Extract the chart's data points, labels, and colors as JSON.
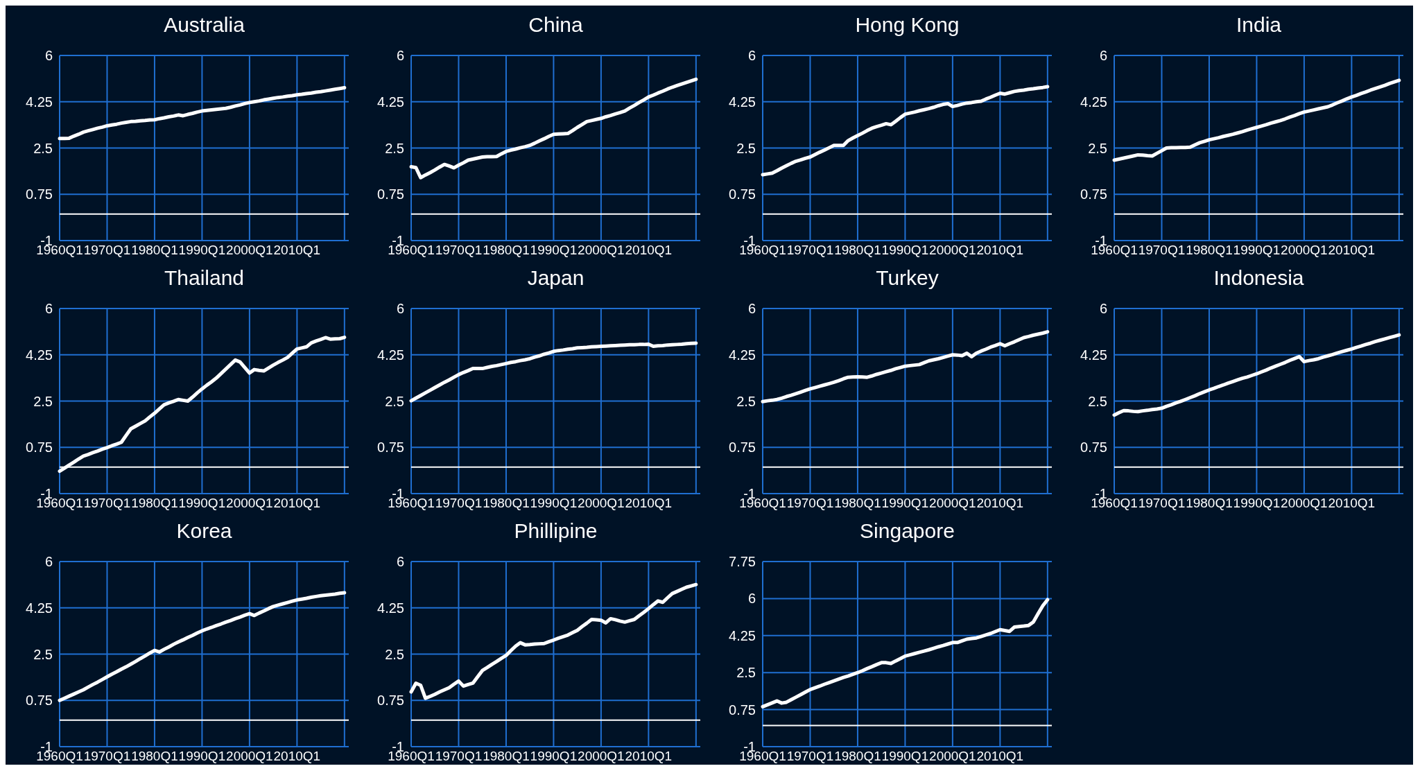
{
  "chart_data": [
    {
      "type": "line",
      "title": "Australia",
      "categories": [
        "1960Q1",
        null,
        null,
        null,
        null,
        null,
        null,
        null,
        null,
        null,
        "1970Q1",
        null,
        null,
        null,
        null,
        null,
        null,
        null,
        null,
        null,
        "1980Q1",
        null,
        null,
        null,
        null,
        null,
        null,
        null,
        null,
        null,
        "1990Q1",
        null,
        null,
        null,
        null,
        null,
        null,
        null,
        null,
        null,
        "2000Q1",
        null,
        null,
        null,
        null,
        null,
        null,
        null,
        null,
        null,
        "2010Q1",
        null,
        null,
        null,
        null,
        null,
        null,
        null,
        null,
        null,
        null
      ],
      "series": [
        {
          "color": "#ffffff",
          "values": [
            2.86,
            2.86,
            2.87,
            2.95,
            3.02,
            3.1,
            3.15,
            3.2,
            3.25,
            3.29,
            3.34,
            3.37,
            3.4,
            3.44,
            3.47,
            3.5,
            3.51,
            3.53,
            3.54,
            3.56,
            3.57,
            3.61,
            3.64,
            3.68,
            3.71,
            3.75,
            3.72,
            3.77,
            3.81,
            3.86,
            3.9,
            3.92,
            3.94,
            3.96,
            3.98,
            4.0,
            4.04,
            4.09,
            4.13,
            4.18,
            4.22,
            4.25,
            4.28,
            4.32,
            4.35,
            4.38,
            4.41,
            4.43,
            4.46,
            4.48,
            4.51,
            4.53,
            4.56,
            4.58,
            4.61,
            4.63,
            4.66,
            4.69,
            4.72,
            4.75,
            4.78
          ]
        }
      ],
      "ylim": [
        -1,
        6
      ],
      "yticks": [
        -1,
        0.75,
        2.5,
        4.25,
        6
      ],
      "grid": true,
      "ref_lines": [
        {
          "axis": "y",
          "value": 0,
          "color": "#ffffff"
        }
      ]
    },
    {
      "type": "line",
      "title": "China",
      "categories": [
        "1960Q1",
        null,
        null,
        null,
        null,
        null,
        null,
        null,
        null,
        null,
        "1970Q1",
        null,
        null,
        null,
        null,
        null,
        null,
        null,
        null,
        null,
        "1980Q1",
        null,
        null,
        null,
        null,
        null,
        null,
        null,
        null,
        null,
        "1990Q1",
        null,
        null,
        null,
        null,
        null,
        null,
        null,
        null,
        null,
        "2000Q1",
        null,
        null,
        null,
        null,
        null,
        null,
        null,
        null,
        null,
        "2010Q1",
        null,
        null,
        null,
        null,
        null,
        null,
        null,
        null,
        null,
        null
      ],
      "series": [
        {
          "color": "#ffffff",
          "values": [
            1.79,
            1.76,
            1.38,
            1.48,
            1.57,
            1.67,
            1.78,
            1.88,
            1.82,
            1.75,
            1.85,
            1.94,
            2.04,
            2.08,
            2.12,
            2.16,
            2.17,
            2.17,
            2.18,
            2.28,
            2.37,
            2.42,
            2.46,
            2.51,
            2.55,
            2.6,
            2.68,
            2.77,
            2.85,
            2.94,
            3.02,
            3.03,
            3.04,
            3.05,
            3.16,
            3.28,
            3.39,
            3.5,
            3.54,
            3.58,
            3.62,
            3.68,
            3.73,
            3.79,
            3.84,
            3.9,
            4.01,
            4.11,
            4.22,
            4.32,
            4.43,
            4.5,
            4.58,
            4.65,
            4.73,
            4.8,
            4.86,
            4.92,
            4.98,
            5.04,
            5.1
          ]
        }
      ],
      "ylim": [
        -1,
        6
      ],
      "yticks": [
        -1,
        0.75,
        2.5,
        4.25,
        6
      ],
      "grid": true,
      "ref_lines": [
        {
          "axis": "y",
          "value": 0,
          "color": "#ffffff"
        }
      ]
    },
    {
      "type": "line",
      "title": "Hong Kong",
      "categories": [
        "1960Q1",
        null,
        null,
        null,
        null,
        null,
        null,
        null,
        null,
        null,
        "1970Q1",
        null,
        null,
        null,
        null,
        null,
        null,
        null,
        null,
        null,
        "1980Q1",
        null,
        null,
        null,
        null,
        null,
        null,
        null,
        null,
        null,
        "1990Q1",
        null,
        null,
        null,
        null,
        null,
        null,
        null,
        null,
        null,
        "2000Q1",
        null,
        null,
        null,
        null,
        null,
        null,
        null,
        null,
        null,
        "2010Q1",
        null,
        null,
        null,
        null,
        null,
        null,
        null,
        null,
        null,
        null
      ],
      "series": [
        {
          "color": "#ffffff",
          "values": [
            1.49,
            1.52,
            1.55,
            1.64,
            1.74,
            1.83,
            1.92,
            2.0,
            2.05,
            2.11,
            2.16,
            2.25,
            2.34,
            2.42,
            2.51,
            2.6,
            2.6,
            2.6,
            2.78,
            2.88,
            2.97,
            3.06,
            3.16,
            3.25,
            3.31,
            3.36,
            3.42,
            3.38,
            3.51,
            3.65,
            3.78,
            3.82,
            3.86,
            3.91,
            3.95,
            3.99,
            4.04,
            4.1,
            4.15,
            4.18,
            4.07,
            4.11,
            4.16,
            4.2,
            4.22,
            4.25,
            4.27,
            4.35,
            4.42,
            4.5,
            4.57,
            4.54,
            4.59,
            4.64,
            4.67,
            4.69,
            4.72,
            4.74,
            4.77,
            4.79,
            4.82
          ]
        }
      ],
      "ylim": [
        -1,
        6
      ],
      "yticks": [
        -1,
        0.75,
        2.5,
        4.25,
        6
      ],
      "grid": true,
      "ref_lines": [
        {
          "axis": "y",
          "value": 0,
          "color": "#ffffff"
        }
      ]
    },
    {
      "type": "line",
      "title": "India",
      "categories": [
        "1960Q1",
        null,
        null,
        null,
        null,
        null,
        null,
        null,
        null,
        null,
        "1970Q1",
        null,
        null,
        null,
        null,
        null,
        null,
        null,
        null,
        null,
        "1980Q1",
        null,
        null,
        null,
        null,
        null,
        null,
        null,
        null,
        null,
        "1990Q1",
        null,
        null,
        null,
        null,
        null,
        null,
        null,
        null,
        null,
        "2000Q1",
        null,
        null,
        null,
        null,
        null,
        null,
        null,
        null,
        null,
        "2010Q1",
        null,
        null,
        null,
        null,
        null,
        null,
        null,
        null,
        null,
        null
      ],
      "series": [
        {
          "color": "#ffffff",
          "values": [
            2.04,
            2.08,
            2.12,
            2.16,
            2.2,
            2.24,
            2.23,
            2.21,
            2.2,
            2.3,
            2.4,
            2.5,
            2.51,
            2.51,
            2.52,
            2.52,
            2.53,
            2.62,
            2.7,
            2.75,
            2.81,
            2.85,
            2.89,
            2.94,
            2.98,
            3.02,
            3.07,
            3.12,
            3.18,
            3.23,
            3.28,
            3.33,
            3.38,
            3.44,
            3.49,
            3.54,
            3.6,
            3.67,
            3.73,
            3.8,
            3.86,
            3.9,
            3.94,
            3.98,
            4.02,
            4.06,
            4.13,
            4.21,
            4.28,
            4.36,
            4.43,
            4.49,
            4.56,
            4.62,
            4.69,
            4.75,
            4.81,
            4.87,
            4.94,
            5.0,
            5.06
          ]
        }
      ],
      "ylim": [
        -1,
        6
      ],
      "yticks": [
        -1,
        0.75,
        2.5,
        4.25,
        6
      ],
      "grid": true,
      "ref_lines": [
        {
          "axis": "y",
          "value": 0,
          "color": "#ffffff"
        }
      ]
    },
    {
      "type": "line",
      "title": "Thailand",
      "categories": [
        "1960Q1",
        null,
        null,
        null,
        null,
        null,
        null,
        null,
        null,
        null,
        "1970Q1",
        null,
        null,
        null,
        null,
        null,
        null,
        null,
        null,
        null,
        "1980Q1",
        null,
        null,
        null,
        null,
        null,
        null,
        null,
        null,
        null,
        "1990Q1",
        null,
        null,
        null,
        null,
        null,
        null,
        null,
        null,
        null,
        "2000Q1",
        null,
        null,
        null,
        null,
        null,
        null,
        null,
        null,
        null,
        "2010Q1",
        null,
        null,
        null,
        null,
        null,
        null,
        null,
        null,
        null,
        null
      ],
      "series": [
        {
          "color": "#ffffff",
          "values": [
            -0.15,
            -0.04,
            0.08,
            0.19,
            0.31,
            0.42,
            0.48,
            0.55,
            0.61,
            0.68,
            0.74,
            0.81,
            0.87,
            0.94,
            1.2,
            1.45,
            1.55,
            1.65,
            1.75,
            1.9,
            2.04,
            2.2,
            2.36,
            2.43,
            2.49,
            2.56,
            2.53,
            2.5,
            2.65,
            2.81,
            2.96,
            3.1,
            3.23,
            3.37,
            3.54,
            3.71,
            3.88,
            4.05,
            3.98,
            3.77,
            3.56,
            3.69,
            3.66,
            3.64,
            3.75,
            3.86,
            3.96,
            4.05,
            4.15,
            4.31,
            4.47,
            4.51,
            4.55,
            4.7,
            4.77,
            4.83,
            4.9,
            4.84,
            4.85,
            4.86,
            4.91
          ]
        }
      ],
      "ylim": [
        -1,
        6
      ],
      "yticks": [
        -1,
        0.75,
        2.5,
        4.25,
        6
      ],
      "grid": true,
      "ref_lines": [
        {
          "axis": "y",
          "value": 0,
          "color": "#ffffff"
        }
      ]
    },
    {
      "type": "line",
      "title": "Japan",
      "categories": [
        "1960Q1",
        null,
        null,
        null,
        null,
        null,
        null,
        null,
        null,
        null,
        "1970Q1",
        null,
        null,
        null,
        null,
        null,
        null,
        null,
        null,
        null,
        "1980Q1",
        null,
        null,
        null,
        null,
        null,
        null,
        null,
        null,
        null,
        "1990Q1",
        null,
        null,
        null,
        null,
        null,
        null,
        null,
        null,
        null,
        "2000Q1",
        null,
        null,
        null,
        null,
        null,
        null,
        null,
        null,
        null,
        "2010Q1",
        null,
        null,
        null,
        null,
        null,
        null,
        null,
        null,
        null,
        null
      ],
      "series": [
        {
          "color": "#ffffff",
          "values": [
            2.51,
            2.61,
            2.71,
            2.81,
            2.91,
            3.01,
            3.11,
            3.21,
            3.3,
            3.4,
            3.5,
            3.58,
            3.65,
            3.73,
            3.73,
            3.73,
            3.77,
            3.81,
            3.84,
            3.88,
            3.92,
            3.96,
            3.99,
            4.03,
            4.06,
            4.1,
            4.16,
            4.21,
            4.27,
            4.32,
            4.38,
            4.41,
            4.43,
            4.46,
            4.48,
            4.51,
            4.52,
            4.53,
            4.55,
            4.56,
            4.57,
            4.58,
            4.59,
            4.6,
            4.61,
            4.62,
            4.63,
            4.63,
            4.64,
            4.64,
            4.65,
            4.57,
            4.59,
            4.6,
            4.62,
            4.63,
            4.64,
            4.65,
            4.67,
            4.68,
            4.69
          ]
        }
      ],
      "ylim": [
        -1,
        6
      ],
      "yticks": [
        -1,
        0.75,
        2.5,
        4.25,
        6
      ],
      "grid": true,
      "ref_lines": [
        {
          "axis": "y",
          "value": 0,
          "color": "#ffffff"
        }
      ]
    },
    {
      "type": "line",
      "title": "Turkey",
      "categories": [
        "1960Q1",
        null,
        null,
        null,
        null,
        null,
        null,
        null,
        null,
        null,
        "1970Q1",
        null,
        null,
        null,
        null,
        null,
        null,
        null,
        null,
        null,
        "1980Q1",
        null,
        null,
        null,
        null,
        null,
        null,
        null,
        null,
        null,
        "1990Q1",
        null,
        null,
        null,
        null,
        null,
        null,
        null,
        null,
        null,
        "2000Q1",
        null,
        null,
        null,
        null,
        null,
        null,
        null,
        null,
        null,
        "2010Q1",
        null,
        null,
        null,
        null,
        null,
        null,
        null,
        null,
        null,
        null
      ],
      "series": [
        {
          "color": "#ffffff",
          "values": [
            2.48,
            2.51,
            2.53,
            2.56,
            2.61,
            2.67,
            2.72,
            2.78,
            2.84,
            2.9,
            2.96,
            3.01,
            3.06,
            3.11,
            3.16,
            3.21,
            3.27,
            3.34,
            3.4,
            3.41,
            3.42,
            3.41,
            3.4,
            3.45,
            3.51,
            3.56,
            3.61,
            3.66,
            3.72,
            3.77,
            3.82,
            3.84,
            3.86,
            3.88,
            3.95,
            4.02,
            4.06,
            4.1,
            4.15,
            4.2,
            4.25,
            4.24,
            4.22,
            4.31,
            4.18,
            4.31,
            4.39,
            4.46,
            4.54,
            4.6,
            4.67,
            4.59,
            4.67,
            4.74,
            4.82,
            4.9,
            4.94,
            4.99,
            5.03,
            5.07,
            5.12
          ]
        }
      ],
      "ylim": [
        -1,
        6
      ],
      "yticks": [
        -1,
        0.75,
        2.5,
        4.25,
        6
      ],
      "grid": true,
      "ref_lines": [
        {
          "axis": "y",
          "value": 0,
          "color": "#ffffff"
        }
      ]
    },
    {
      "type": "line",
      "title": "Indonesia",
      "categories": [
        "1960Q1",
        null,
        null,
        null,
        null,
        null,
        null,
        null,
        null,
        null,
        "1970Q1",
        null,
        null,
        null,
        null,
        null,
        null,
        null,
        null,
        null,
        "1980Q1",
        null,
        null,
        null,
        null,
        null,
        null,
        null,
        null,
        null,
        "1990Q1",
        null,
        null,
        null,
        null,
        null,
        null,
        null,
        null,
        null,
        "2000Q1",
        null,
        null,
        null,
        null,
        null,
        null,
        null,
        null,
        null,
        "2010Q1",
        null,
        null,
        null,
        null,
        null,
        null,
        null,
        null,
        null,
        null
      ],
      "series": [
        {
          "color": "#ffffff",
          "values": [
            1.97,
            2.06,
            2.14,
            2.13,
            2.11,
            2.1,
            2.13,
            2.15,
            2.18,
            2.2,
            2.23,
            2.3,
            2.36,
            2.43,
            2.49,
            2.56,
            2.63,
            2.7,
            2.78,
            2.85,
            2.92,
            2.98,
            3.05,
            3.11,
            3.18,
            3.24,
            3.3,
            3.36,
            3.41,
            3.47,
            3.53,
            3.6,
            3.67,
            3.75,
            3.82,
            3.89,
            3.96,
            4.04,
            4.11,
            4.18,
            3.99,
            4.03,
            4.06,
            4.1,
            4.16,
            4.21,
            4.26,
            4.32,
            4.37,
            4.42,
            4.47,
            4.53,
            4.58,
            4.64,
            4.69,
            4.75,
            4.8,
            4.85,
            4.9,
            4.95,
            5.0
          ]
        }
      ],
      "ylim": [
        -1,
        6
      ],
      "yticks": [
        -1,
        0.75,
        2.5,
        4.25,
        6
      ],
      "grid": true,
      "ref_lines": [
        {
          "axis": "y",
          "value": 0,
          "color": "#ffffff"
        }
      ]
    },
    {
      "type": "line",
      "title": "Korea",
      "categories": [
        "1960Q1",
        null,
        null,
        null,
        null,
        null,
        null,
        null,
        null,
        null,
        "1970Q1",
        null,
        null,
        null,
        null,
        null,
        null,
        null,
        null,
        null,
        "1980Q1",
        null,
        null,
        null,
        null,
        null,
        null,
        null,
        null,
        null,
        "1990Q1",
        null,
        null,
        null,
        null,
        null,
        null,
        null,
        null,
        null,
        "2000Q1",
        null,
        null,
        null,
        null,
        null,
        null,
        null,
        null,
        null,
        "2010Q1",
        null,
        null,
        null,
        null,
        null,
        null,
        null,
        null,
        null,
        null
      ],
      "series": [
        {
          "color": "#ffffff",
          "values": [
            0.75,
            0.83,
            0.91,
            0.99,
            1.07,
            1.15,
            1.25,
            1.35,
            1.44,
            1.54,
            1.64,
            1.74,
            1.83,
            1.93,
            2.02,
            2.12,
            2.22,
            2.33,
            2.43,
            2.54,
            2.64,
            2.58,
            2.68,
            2.77,
            2.87,
            2.96,
            3.04,
            3.13,
            3.21,
            3.3,
            3.38,
            3.45,
            3.51,
            3.58,
            3.64,
            3.71,
            3.77,
            3.84,
            3.9,
            3.97,
            4.03,
            3.96,
            4.05,
            4.13,
            4.22,
            4.3,
            4.35,
            4.4,
            4.45,
            4.5,
            4.55,
            4.58,
            4.61,
            4.65,
            4.68,
            4.71,
            4.73,
            4.75,
            4.77,
            4.8,
            4.82
          ]
        }
      ],
      "ylim": [
        -1,
        6
      ],
      "yticks": [
        -1,
        0.75,
        2.5,
        4.25,
        6
      ],
      "grid": true,
      "ref_lines": [
        {
          "axis": "y",
          "value": 0,
          "color": "#ffffff"
        }
      ]
    },
    {
      "type": "line",
      "title": "Phillipine",
      "categories": [
        "1960Q1",
        null,
        null,
        null,
        null,
        null,
        null,
        null,
        null,
        null,
        "1970Q1",
        null,
        null,
        null,
        null,
        null,
        null,
        null,
        null,
        null,
        "1980Q1",
        null,
        null,
        null,
        null,
        null,
        null,
        null,
        null,
        null,
        "1990Q1",
        null,
        null,
        null,
        null,
        null,
        null,
        null,
        null,
        null,
        "2000Q1",
        null,
        null,
        null,
        null,
        null,
        null,
        null,
        null,
        null,
        "2010Q1",
        null,
        null,
        null,
        null,
        null,
        null,
        null,
        null,
        null,
        null
      ],
      "series": [
        {
          "color": "#ffffff",
          "values": [
            1.07,
            1.4,
            1.32,
            0.83,
            0.9,
            0.98,
            1.07,
            1.15,
            1.23,
            1.36,
            1.48,
            1.29,
            1.35,
            1.4,
            1.64,
            1.88,
            1.99,
            2.11,
            2.22,
            2.34,
            2.45,
            2.63,
            2.8,
            2.93,
            2.85,
            2.86,
            2.88,
            2.89,
            2.9,
            2.97,
            3.03,
            3.1,
            3.16,
            3.22,
            3.31,
            3.4,
            3.54,
            3.67,
            3.81,
            3.8,
            3.78,
            3.68,
            3.84,
            3.8,
            3.75,
            3.71,
            3.76,
            3.81,
            3.95,
            4.08,
            4.22,
            4.37,
            4.51,
            4.46,
            4.63,
            4.79,
            4.87,
            4.95,
            5.03,
            5.08,
            5.13
          ]
        }
      ],
      "ylim": [
        -1,
        6
      ],
      "yticks": [
        -1,
        0.75,
        2.5,
        4.25,
        6
      ],
      "grid": true,
      "ref_lines": [
        {
          "axis": "y",
          "value": 0,
          "color": "#ffffff"
        }
      ]
    },
    {
      "type": "line",
      "title": "Singapore",
      "categories": [
        "1960Q1",
        null,
        null,
        null,
        null,
        null,
        null,
        null,
        null,
        null,
        "1970Q1",
        null,
        null,
        null,
        null,
        null,
        null,
        null,
        null,
        null,
        "1980Q1",
        null,
        null,
        null,
        null,
        null,
        null,
        null,
        null,
        null,
        "1990Q1",
        null,
        null,
        null,
        null,
        null,
        null,
        null,
        null,
        null,
        "2000Q1",
        null,
        null,
        null,
        null,
        null,
        null,
        null,
        null,
        null,
        "2010Q1",
        null,
        null,
        null,
        null,
        null,
        null,
        null,
        null,
        null,
        null
      ],
      "series": [
        {
          "color": "#ffffff",
          "values": [
            0.89,
            0.98,
            1.07,
            1.16,
            1.06,
            1.1,
            1.22,
            1.34,
            1.46,
            1.58,
            1.7,
            1.78,
            1.86,
            1.95,
            2.03,
            2.11,
            2.19,
            2.27,
            2.34,
            2.42,
            2.5,
            2.59,
            2.69,
            2.78,
            2.88,
            2.97,
            2.97,
            2.93,
            3.05,
            3.16,
            3.28,
            3.34,
            3.4,
            3.46,
            3.52,
            3.58,
            3.65,
            3.72,
            3.78,
            3.85,
            3.92,
            3.92,
            4.0,
            4.08,
            4.11,
            4.14,
            4.21,
            4.28,
            4.35,
            4.44,
            4.53,
            4.49,
            4.45,
            4.65,
            4.68,
            4.7,
            4.73,
            4.89,
            5.28,
            5.66,
            5.95
          ]
        }
      ],
      "ylim": [
        -1,
        7.75
      ],
      "yticks": [
        -1,
        0.75,
        2.5,
        4.25,
        6,
        7.75
      ],
      "grid": true,
      "ref_lines": [
        {
          "axis": "y",
          "value": 0,
          "color": "#ffffff"
        }
      ]
    }
  ]
}
